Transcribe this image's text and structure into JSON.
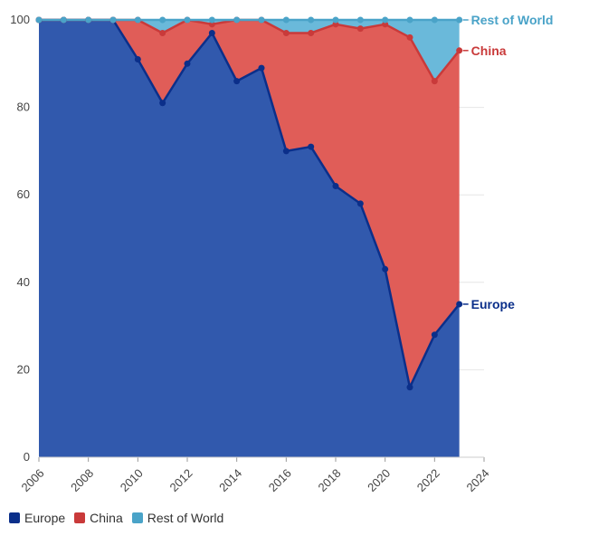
{
  "chart_data": {
    "type": "area",
    "stacked": true,
    "x": [
      2006,
      2007,
      2008,
      2009,
      2010,
      2011,
      2012,
      2013,
      2014,
      2015,
      2016,
      2017,
      2018,
      2019,
      2020,
      2021,
      2022,
      2023
    ],
    "series": [
      {
        "name": "Europe",
        "color": "#0b2f8a",
        "fill": "#3159ad",
        "values": [
          100,
          100,
          100,
          100,
          91,
          81,
          90,
          97,
          86,
          89,
          70,
          71,
          62,
          58,
          43,
          16,
          28,
          35
        ]
      },
      {
        "name": "China",
        "color": "#c93a3a",
        "fill": "#e05d58",
        "values": [
          0,
          0,
          0,
          0,
          9,
          16,
          10,
          2,
          14,
          11,
          27,
          26,
          37,
          40,
          56,
          80,
          58,
          58
        ]
      },
      {
        "name": "Rest of World",
        "color": "#4aa3c8",
        "fill": "#6ab9da",
        "values": [
          0,
          0,
          0,
          0,
          0,
          3,
          0,
          1,
          0,
          0,
          3,
          3,
          1,
          2,
          1,
          4,
          14,
          7
        ]
      }
    ],
    "xlim": [
      2006,
      2024
    ],
    "ylim": [
      0,
      100
    ],
    "x_ticks": [
      2006,
      2008,
      2010,
      2012,
      2014,
      2016,
      2018,
      2020,
      2022,
      2024
    ],
    "y_ticks": [
      0,
      20,
      40,
      60,
      80,
      100
    ],
    "grid": true,
    "legend_position": "bottom-left",
    "end_labels": [
      "Rest of World",
      "China",
      "Europe"
    ]
  },
  "legend": {
    "items": [
      {
        "label": "Europe",
        "color": "#0b2f8a"
      },
      {
        "label": "China",
        "color": "#c93a3a"
      },
      {
        "label": "Rest of World",
        "color": "#4aa3c8"
      }
    ]
  }
}
